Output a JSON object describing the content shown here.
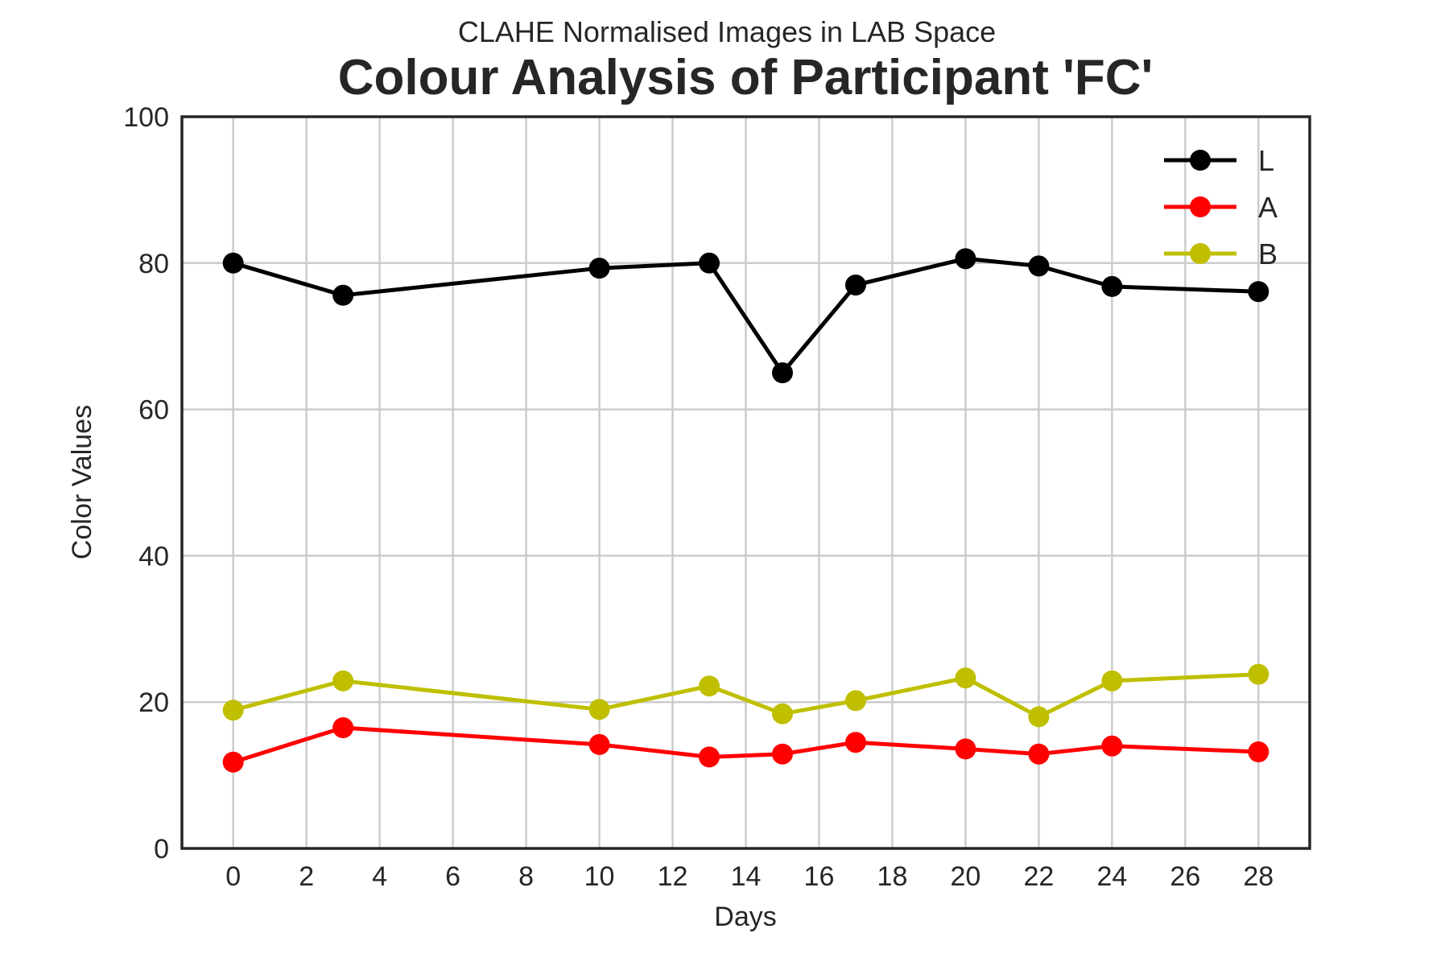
{
  "chart_data": {
    "type": "line",
    "subtitle": "CLAHE Normalised Images in LAB Space",
    "title": "Colour Analysis of Participant 'FC'",
    "xlabel": "Days",
    "ylabel": "Color Values",
    "xlim": [
      -1.4,
      29.4
    ],
    "ylim": [
      0,
      100
    ],
    "xticks": [
      0,
      2,
      4,
      6,
      8,
      10,
      12,
      14,
      16,
      18,
      20,
      22,
      24,
      26,
      28
    ],
    "yticks": [
      0,
      20,
      40,
      60,
      80,
      100
    ],
    "grid": true,
    "legend_position": "top-right",
    "x": [
      0,
      3,
      10,
      13,
      15,
      17,
      20,
      22,
      24,
      28
    ],
    "series": [
      {
        "name": "L",
        "color": "#000000",
        "values": [
          80.0,
          75.6,
          79.3,
          80.0,
          65.0,
          77.0,
          80.6,
          79.6,
          76.8,
          76.1
        ]
      },
      {
        "name": "A",
        "color": "#ff0000",
        "values": [
          11.8,
          16.5,
          14.2,
          12.5,
          12.9,
          14.5,
          13.6,
          12.9,
          14.0,
          13.2
        ]
      },
      {
        "name": "B",
        "color": "#bfbf00",
        "values": [
          18.9,
          22.9,
          19.0,
          22.2,
          18.4,
          20.2,
          23.3,
          18.0,
          22.9,
          23.8
        ]
      }
    ]
  }
}
